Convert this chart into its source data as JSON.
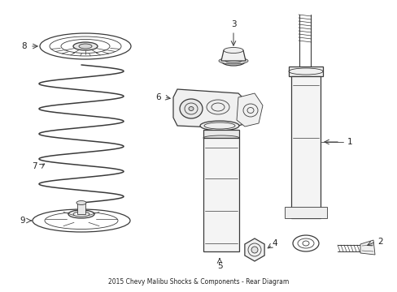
{
  "title": "2015 Chevy Malibu Shocks & Components - Rear Diagram",
  "bg_color": "#ffffff",
  "line_color": "#3a3a3a",
  "text_color": "#222222",
  "fig_width": 4.89,
  "fig_height": 3.6,
  "dpi": 100
}
